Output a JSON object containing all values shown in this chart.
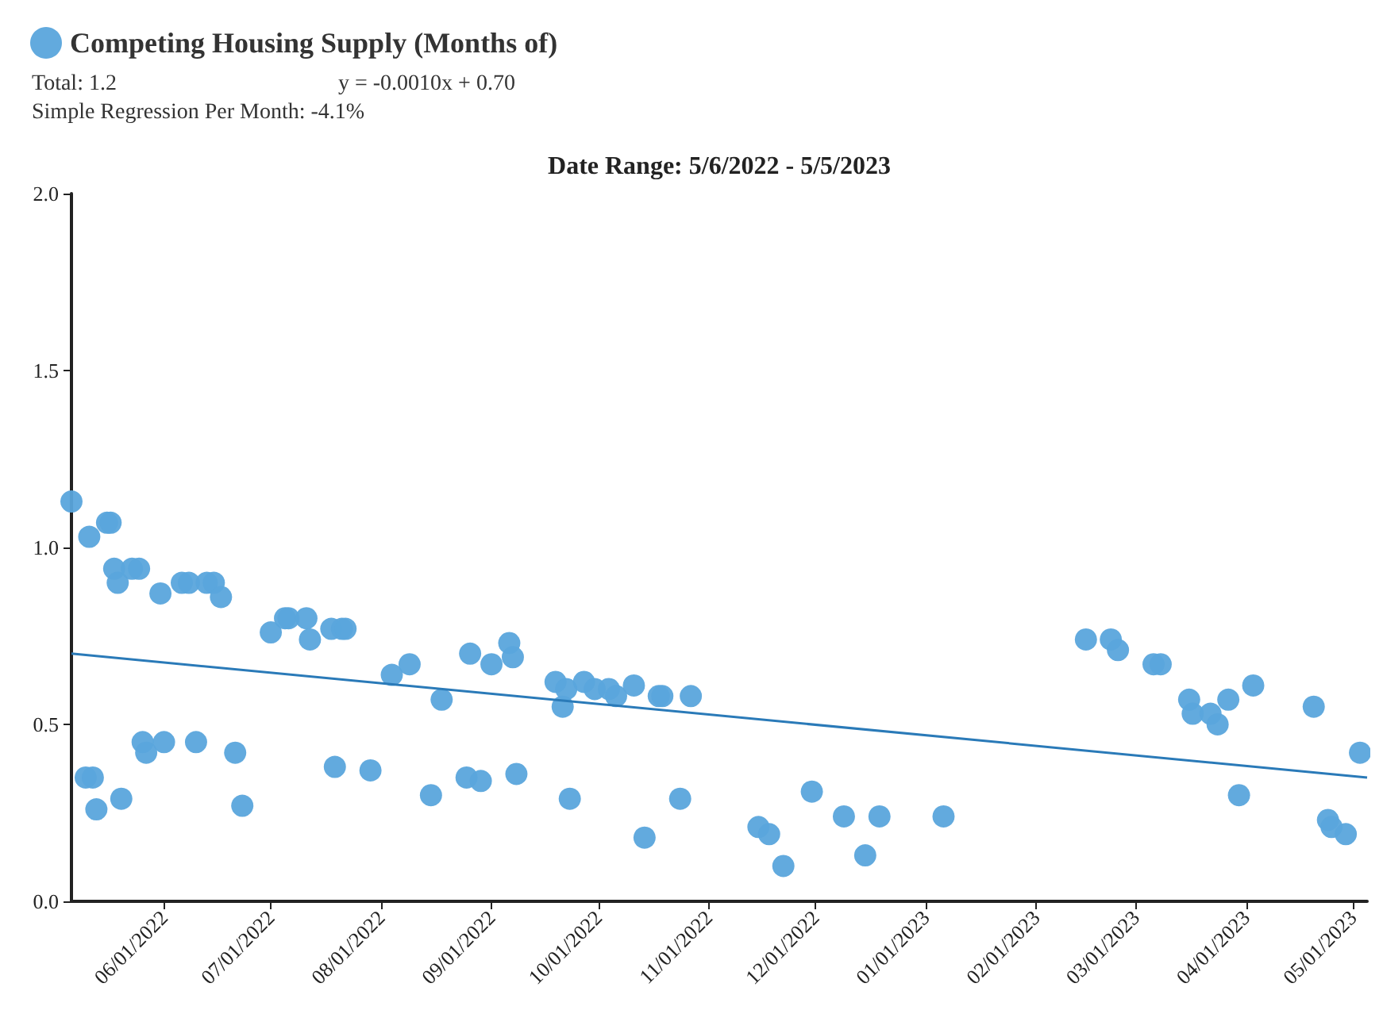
{
  "chart_data": {
    "type": "scatter",
    "title": "Date Range: 5/6/2022 - 5/5/2023",
    "annotations": [
      "Total: 1.2",
      "y = -0.0010x + 0.70",
      "Simple Regression Per Month: -4.1%"
    ],
    "series": [
      {
        "name": "Competing Housing Supply (Months of)",
        "marker": "circle",
        "color": "#5aa5dc",
        "x": [
          "2022-05-06",
          "2022-05-11",
          "2022-05-10",
          "2022-05-12",
          "2022-05-13",
          "2022-05-16",
          "2022-05-17",
          "2022-05-18",
          "2022-05-19",
          "2022-05-20",
          "2022-05-23",
          "2022-05-25",
          "2022-05-26",
          "2022-05-27",
          "2022-05-31",
          "2022-06-01",
          "2022-06-06",
          "2022-06-08",
          "2022-06-10",
          "2022-06-13",
          "2022-06-15",
          "2022-06-17",
          "2022-06-21",
          "2022-06-23",
          "2022-07-01",
          "2022-07-05",
          "2022-07-06",
          "2022-07-11",
          "2022-07-12",
          "2022-07-19",
          "2022-07-18",
          "2022-07-21",
          "2022-07-22",
          "2022-07-29",
          "2022-08-04",
          "2022-08-09",
          "2022-08-15",
          "2022-08-18",
          "2022-08-25",
          "2022-08-26",
          "2022-08-29",
          "2022-09-01",
          "2022-09-06",
          "2022-09-07",
          "2022-09-08",
          "2022-09-19",
          "2022-09-22",
          "2022-09-21",
          "2022-09-23",
          "2022-09-27",
          "2022-09-30",
          "2022-10-04",
          "2022-10-06",
          "2022-10-11",
          "2022-10-14",
          "2022-10-18",
          "2022-10-19",
          "2022-10-24",
          "2022-10-27",
          "2022-11-15",
          "2022-11-18",
          "2022-11-22",
          "2022-11-30",
          "2022-12-09",
          "2022-12-15",
          "2022-12-19",
          "2023-01-06",
          "2023-02-15",
          "2023-02-22",
          "2023-02-24",
          "2023-03-06",
          "2023-03-08",
          "2023-03-16",
          "2023-03-17",
          "2023-03-22",
          "2023-03-24",
          "2023-03-27",
          "2023-03-30",
          "2023-04-03",
          "2023-04-20",
          "2023-04-24",
          "2023-04-25",
          "2023-04-29",
          "2023-05-03"
        ],
        "values": [
          1.13,
          1.03,
          0.35,
          0.35,
          0.26,
          1.07,
          1.07,
          0.94,
          0.9,
          0.29,
          0.94,
          0.94,
          0.45,
          0.42,
          0.87,
          0.45,
          0.9,
          0.9,
          0.45,
          0.9,
          0.9,
          0.86,
          0.42,
          0.27,
          0.76,
          0.8,
          0.8,
          0.8,
          0.74,
          0.38,
          0.77,
          0.77,
          0.77,
          0.37,
          0.64,
          0.67,
          0.3,
          0.57,
          0.35,
          0.7,
          0.34,
          0.67,
          0.73,
          0.69,
          0.36,
          0.62,
          0.6,
          0.55,
          0.29,
          0.62,
          0.6,
          0.6,
          0.58,
          0.61,
          0.18,
          0.58,
          0.58,
          0.29,
          0.58,
          0.21,
          0.19,
          0.1,
          0.31,
          0.24,
          0.13,
          0.24,
          0.24,
          0.74,
          0.74,
          0.71,
          0.67,
          0.67,
          0.57,
          0.53,
          0.53,
          0.5,
          0.57,
          0.3,
          0.61,
          0.55,
          0.23,
          0.21,
          0.19,
          0.42
        ]
      },
      {
        "type": "line",
        "marker": "none",
        "color": "#2a7ab8",
        "x": [
          "2022-05-06",
          "2023-05-05"
        ],
        "values": [
          0.7,
          0.35
        ]
      }
    ],
    "xlim": [
      "2022-05-06",
      "2023-05-05"
    ],
    "xticks": [
      {
        "value": "2022-06-01",
        "label": "06/01/2022"
      },
      {
        "value": "2022-07-01",
        "label": "07/01/2022"
      },
      {
        "value": "2022-08-01",
        "label": "08/01/2022"
      },
      {
        "value": "2022-09-01",
        "label": "09/01/2022"
      },
      {
        "value": "2022-10-01",
        "label": "10/01/2022"
      },
      {
        "value": "2022-11-01",
        "label": "11/01/2022"
      },
      {
        "value": "2022-12-01",
        "label": "12/01/2022"
      },
      {
        "value": "2023-01-01",
        "label": "01/01/2023"
      },
      {
        "value": "2023-02-01",
        "label": "02/01/2023"
      },
      {
        "value": "2023-03-01",
        "label": "03/01/2023"
      },
      {
        "value": "2023-04-01",
        "label": "04/01/2023"
      },
      {
        "value": "2023-05-01",
        "label": "05/01/2023"
      }
    ],
    "ylim": [
      0,
      2
    ],
    "yticks": [
      {
        "value": 0,
        "label": "0.0"
      },
      {
        "value": 0.5,
        "label": "0.5"
      },
      {
        "value": 1,
        "label": "1.0"
      },
      {
        "value": 1.5,
        "label": "1.5"
      },
      {
        "value": 2,
        "label": "2.0"
      }
    ],
    "grid": false,
    "legend": "top left"
  }
}
